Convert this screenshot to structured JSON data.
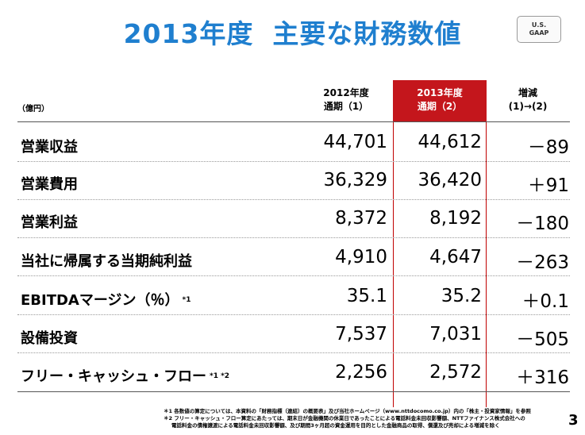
{
  "title": {
    "year": "2013年度",
    "main": "主要な財務数値"
  },
  "badge": {
    "line1": "U.S.",
    "line2": "GAAP"
  },
  "unit": "（億円）",
  "headers": {
    "col1": {
      "line1": "2012年度",
      "line2": "通期（1）"
    },
    "col2": {
      "line1": "2013年度",
      "line2": "通期（2）"
    },
    "col3": {
      "line1": "増減",
      "line2": "(1)→(2)"
    }
  },
  "rows": [
    {
      "label": "営業収益",
      "mark": "",
      "v1": "44,701",
      "v2": "44,612",
      "diff": "－89"
    },
    {
      "label": "営業費用",
      "mark": "",
      "v1": "36,329",
      "v2": "36,420",
      "diff": "＋91"
    },
    {
      "label": "営業利益",
      "mark": "",
      "v1": "8,372",
      "v2": "8,192",
      "diff": "－180"
    },
    {
      "label": "当社に帰属する当期純利益",
      "mark": "",
      "v1": "4,910",
      "v2": "4,647",
      "diff": "－263"
    },
    {
      "label": "EBITDAマージン（％）",
      "mark": "*1",
      "v1": "35.1",
      "v2": "35.2",
      "diff": "＋0.1"
    },
    {
      "label": "設備投資",
      "mark": "",
      "v1": "7,537",
      "v2": "7,031",
      "diff": "－505"
    },
    {
      "label": "フリー・キャッシュ・フロー",
      "mark": "*1 *2",
      "v1": "2,256",
      "v2": "2,572",
      "diff": "＋316"
    }
  ],
  "notes": {
    "n1": "＊1 各数値の算定については、本資料の「財務指標（連結）の概要表」及び当社ホームページ（www.nttdocomo.co.jp）内の「株主・投資家情報」を参照",
    "n2a": "＊2 フリー・キャッシュ・フロー算定にあたっては、期末日が金融機関の休業日であったことによる電話料金未回収影響額、NTTファイナンス株式会社への",
    "n2b": "電話料金の債権譲渡による電話料金未回収影響額、及び期間3ヶ月超の資金運用を目的とした金融商品の取得、償還及び売却による増減を除く"
  },
  "page_number": "3"
}
